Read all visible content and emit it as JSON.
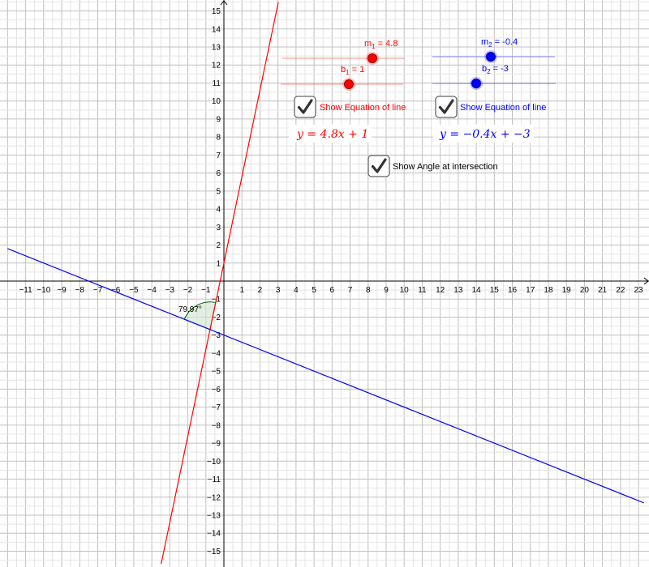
{
  "chart_data": {
    "type": "line",
    "title": "",
    "xlabel": "",
    "ylabel": "",
    "xlim": [
      -12,
      23.3
    ],
    "ylim": [
      -15.7,
      15.5
    ],
    "grid": true,
    "x_ticks": [
      -11,
      -10,
      -9,
      -8,
      -7,
      -6,
      -5,
      -4,
      -3,
      -2,
      -1,
      1,
      2,
      3,
      4,
      5,
      6,
      7,
      8,
      9,
      10,
      11,
      12,
      13,
      14,
      15,
      16,
      17,
      18,
      19,
      20,
      21,
      22,
      23
    ],
    "y_ticks": [
      15,
      14,
      13,
      12,
      11,
      10,
      9,
      8,
      7,
      6,
      5,
      4,
      3,
      2,
      1,
      -1,
      -2,
      -3,
      -4,
      -5,
      -6,
      -7,
      -8,
      -9,
      -10,
      -11,
      -12,
      -13,
      -14,
      -15
    ],
    "series": [
      {
        "slope": 4.8,
        "intercept": 1,
        "color": "#ff0000"
      },
      {
        "slope": -0.4,
        "intercept": -3,
        "color": "#0000ff"
      }
    ],
    "angle_annotation": {
      "label": "79.97°",
      "color": "#006400"
    }
  },
  "sliders": {
    "m1": {
      "name": "m",
      "sub": "1",
      "value_text": " = 4.8",
      "color": "#ff0000",
      "value": 4.8
    },
    "b1": {
      "name": "b",
      "sub": "1",
      "value_text": " = 1",
      "color": "#ff0000",
      "value": 1
    },
    "m2": {
      "name": "m",
      "sub": "2",
      "value_text": " = -0.4",
      "color": "#0000ff",
      "value": -0.4
    },
    "b2": {
      "name": "b",
      "sub": "2",
      "value_text": " = -3",
      "color": "#0000ff",
      "value": -3
    }
  },
  "checkboxes": {
    "eq1": {
      "label": "Show Equation of line",
      "color": "#ff0000",
      "checked": true
    },
    "eq2": {
      "label": "Show Equation of line",
      "color": "#0000ff",
      "checked": true
    },
    "angle": {
      "label": "Show Angle at intersection",
      "color": "#000000",
      "checked": true
    }
  },
  "equations": {
    "eq1": {
      "text": "y = 4.8x + 1",
      "color": "#ff0000"
    },
    "eq2": {
      "text": "y = −0.4x + −3",
      "color": "#0000ff"
    }
  }
}
